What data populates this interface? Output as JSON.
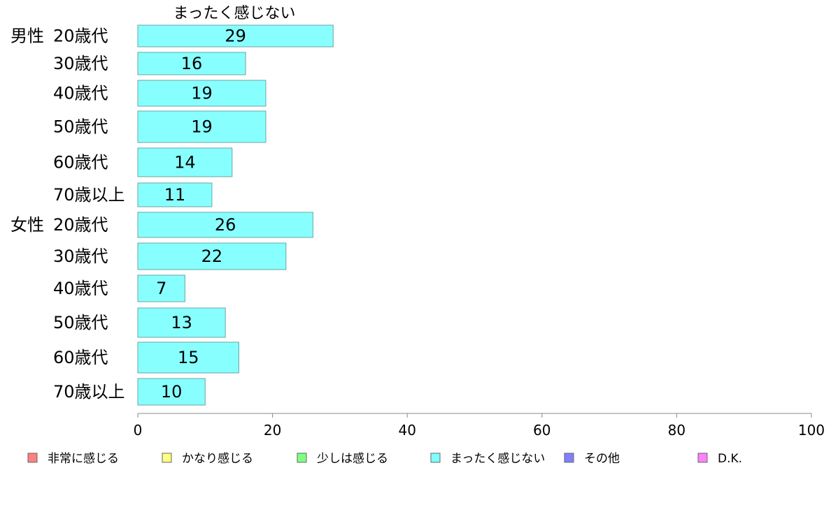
{
  "chart_data": {
    "type": "bar",
    "orientation": "horizontal",
    "title": "まったく感じない",
    "xlim": [
      0,
      100
    ],
    "xticks": [
      "0",
      "20",
      "40",
      "60",
      "80",
      "100"
    ],
    "groups": [
      {
        "label": "男性",
        "categories": [
          "20歳代",
          "30歳代",
          "40歳代",
          "50歳代",
          "60歳代",
          "70歳以上"
        ],
        "values": [
          29,
          16,
          19,
          19,
          14,
          11
        ]
      },
      {
        "label": "女性",
        "categories": [
          "20歳代",
          "30歳代",
          "40歳代",
          "50歳代",
          "60歳代",
          "70歳以上"
        ],
        "values": [
          26,
          22,
          7,
          13,
          15,
          10
        ]
      }
    ],
    "bar_color": "#88ffff",
    "bar_border": "#6aa6a6",
    "axis_color": "#888888",
    "legend": [
      {
        "label": "非常に感じる",
        "color": "#ff8080"
      },
      {
        "label": "かなり感じる",
        "color": "#ffff80"
      },
      {
        "label": "少しは感じる",
        "color": "#80ff80"
      },
      {
        "label": "まったく感じない",
        "color": "#80ffff"
      },
      {
        "label": "その他",
        "color": "#8080ff"
      },
      {
        "label": "D.K.",
        "color": "#ff80ff"
      }
    ],
    "legend_position": "bottom"
  }
}
